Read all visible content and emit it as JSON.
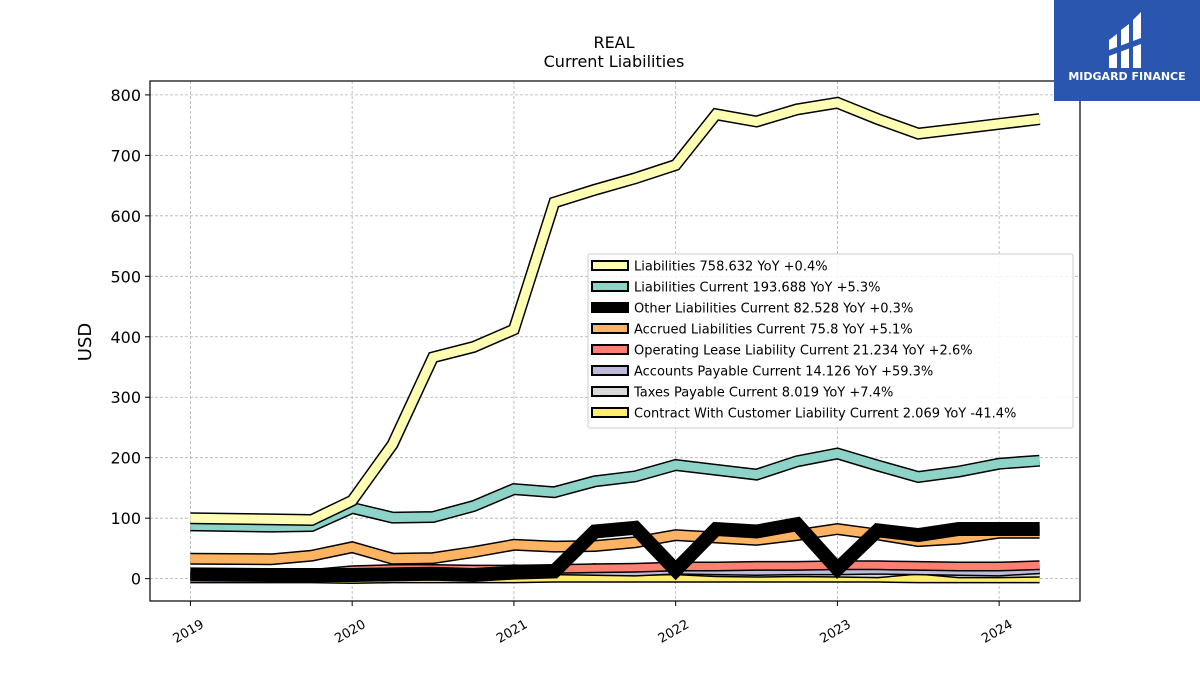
{
  "chart_data": {
    "type": "line",
    "title": "REAL",
    "subtitle": "Current  Liabilities",
    "ylabel": "USD",
    "xlabel": "",
    "xlim": [
      2018.75,
      2024.5
    ],
    "ylim": [
      -37,
      823
    ],
    "yticks": [
      0,
      100,
      200,
      300,
      400,
      500,
      600,
      700,
      800
    ],
    "xticks": [
      2019,
      2020,
      2021,
      2022,
      2023,
      2024
    ],
    "grid": true,
    "legend_position": "center-right",
    "x": [
      2019.0,
      2019.5,
      2019.75,
      2020.0,
      2020.25,
      2020.5,
      2020.75,
      2021.0,
      2021.25,
      2021.5,
      2021.75,
      2022.0,
      2022.25,
      2022.5,
      2022.75,
      2023.0,
      2023.25,
      2023.5,
      2023.75,
      2024.0,
      2024.25
    ],
    "series": [
      {
        "name": "Liabilities",
        "legend": "Liabilities  758.632 YoY +0.4%",
        "color": "#ffffb3",
        "width": 9,
        "values": [
          100,
          98,
          97,
          129,
          222,
          366,
          383,
          412,
          622,
          643,
          662,
          684,
          768,
          756,
          776,
          787,
          760,
          736,
          744,
          752,
          760
        ]
      },
      {
        "name": "Liabilities Current",
        "legend": "Liabilities Current  193.688 YoY +5.3%",
        "color": "#8dd3c7",
        "width": 9,
        "values": [
          88,
          86,
          87,
          117,
          101,
          102,
          120,
          148,
          143,
          161,
          169,
          188,
          180,
          172,
          194,
          207,
          187,
          168,
          177,
          190,
          195
        ]
      },
      {
        "name": "Other Liabilities Current",
        "legend": "Other Liabilities Current  82.528 YoY +0.3%",
        "color": "#000000",
        "width": 11,
        "values": [
          7,
          6,
          6,
          6,
          7,
          8,
          6,
          10,
          12,
          78,
          84,
          14,
          82,
          78,
          90,
          16,
          80,
          72,
          82,
          82,
          82
        ]
      },
      {
        "name": "Accrued Liabilities Current",
        "legend": "Accrued Liabilities Current  75.8 YoY +5.1%",
        "color": "#fdb462",
        "width": 9,
        "values": [
          33,
          32,
          38,
          52,
          33,
          34,
          44,
          56,
          53,
          54,
          60,
          72,
          68,
          64,
          72,
          82,
          73,
          62,
          66,
          76,
          76
        ]
      },
      {
        "name": "Operating Lease Liability Current",
        "legend": "Operating Lease Liability Current  21.234 YoY +2.6%",
        "color": "#fb8072",
        "width": 7,
        "values": [
          6,
          6,
          8,
          14,
          16,
          16,
          15,
          15,
          16,
          17,
          18,
          20,
          20,
          21,
          21,
          22,
          22,
          21,
          20,
          20,
          22
        ]
      },
      {
        "name": "Accounts Payable Current",
        "legend": "Accounts Payable Current  14.126 YoY +59.3%",
        "color": "#bebada",
        "width": 5,
        "values": [
          5,
          5,
          6,
          8,
          10,
          9,
          10,
          14,
          12,
          11,
          10,
          13,
          12,
          11,
          12,
          12,
          13,
          12,
          11,
          10,
          14
        ]
      },
      {
        "name": "Taxes Payable Current",
        "legend": "Taxes Payable Current  8.019 YoY +7.4%",
        "color": "#d9d9d9",
        "width": 5,
        "values": [
          4,
          4,
          5,
          13,
          11,
          9,
          10,
          17,
          13,
          19,
          11,
          12,
          9,
          8,
          9,
          8,
          7,
          13,
          7,
          7,
          8
        ]
      },
      {
        "name": "Contract With Customer Liability Current",
        "legend": "Contract With Customer Liability Current  2.069 YoY -41.4%",
        "color": "#ffed6f",
        "width": 9,
        "values": [
          2,
          2,
          2,
          1,
          2,
          2,
          2,
          2,
          3,
          3,
          3,
          3,
          3,
          3,
          3,
          3,
          3,
          2,
          2,
          2,
          2
        ]
      }
    ]
  },
  "logo": {
    "brand": "MIDGARD FINANCE"
  }
}
